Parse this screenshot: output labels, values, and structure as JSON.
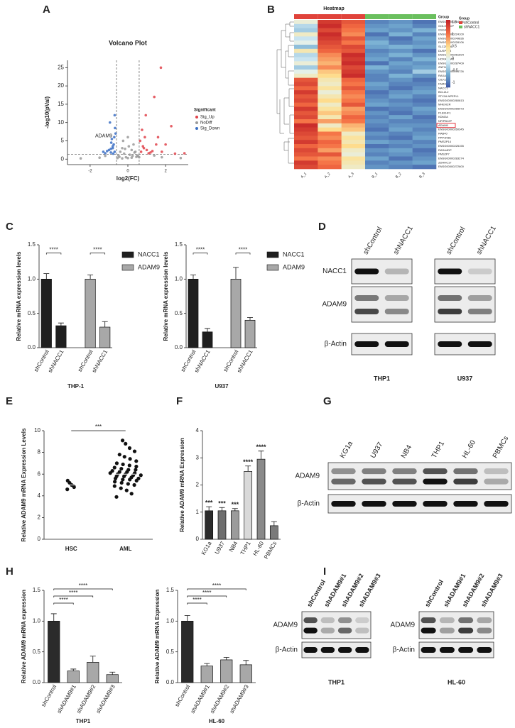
{
  "panel_labels": [
    "A",
    "B",
    "C",
    "D",
    "E",
    "F",
    "G",
    "H",
    "I"
  ],
  "chart_data": [
    {
      "type": "scatter",
      "title": "Volcano Plot",
      "x_label": "log2(FC)",
      "y_label": "-log10(pVal)",
      "xlim": [
        -3.2,
        3.2
      ],
      "ylim": [
        -1.5,
        27
      ],
      "xticks": [
        -2,
        0,
        2
      ],
      "yticks": [
        0,
        5,
        10,
        15,
        20,
        25
      ],
      "hlines": [
        1.3
      ],
      "vlines": [
        -0.6,
        0.6
      ],
      "legend_title": "Significant",
      "legend": "right",
      "series": [
        {
          "name": "Sig_Up",
          "color": "#e0434b",
          "x": [
            0.7,
            0.8,
            0.9,
            1.0,
            1.2,
            1.5,
            1.8,
            1.75,
            0.75,
            0.85,
            1.1,
            1.3,
            1.6,
            2.0,
            2.5,
            3.0,
            0.65,
            0.95,
            1.4,
            2.3
          ],
          "y": [
            2,
            3.5,
            6,
            2.5,
            1.8,
            4,
            2,
            25,
            8,
            3,
            1.6,
            2.2,
            6,
            4,
            1.5,
            1.6,
            5,
            12,
            17,
            9
          ]
        },
        {
          "name": "NoDiff",
          "color": "#9a9a9a",
          "x": [
            -0.5,
            -0.4,
            -0.3,
            -0.2,
            -0.1,
            0,
            0.1,
            0.2,
            0.3,
            0.4,
            0.5,
            -0.45,
            -0.25,
            0.05,
            0.35,
            0.55,
            -1.5,
            -1.2,
            1.4,
            1.8,
            -0.3,
            0.2,
            -0.55,
            0.45,
            0,
            -0.15,
            0.25,
            -2.5,
            2.8,
            0.6
          ],
          "y": [
            1,
            2,
            3,
            1.5,
            0.5,
            0.3,
            1.2,
            2.5,
            4,
            2,
            1,
            0.6,
            5,
            3.5,
            1.8,
            0.8,
            0.4,
            0.9,
            1,
            0.5,
            0.2,
            0.4,
            0.3,
            0.6,
            6,
            2.8,
            0.9,
            0.2,
            0.3,
            0.5
          ]
        },
        {
          "name": "Sig_Down",
          "color": "#3b6fc4",
          "x": [
            -0.7,
            -0.8,
            -0.9,
            -1.0,
            -0.75,
            -0.85,
            -1.1,
            -0.65,
            -0.95,
            -0.7,
            -0.8,
            -1.2,
            -0.9,
            -0.72,
            -1.3,
            -0.68,
            -0.78,
            -0.88
          ],
          "y": [
            2,
            3,
            1.8,
            2.5,
            4,
            5.5,
            2.2,
            7,
            10,
            12,
            3.5,
            1.6,
            2.8,
            6,
            2,
            8.5,
            1.5,
            4.5
          ]
        }
      ],
      "annotation": {
        "text": "ADAM9",
        "x": -0.75,
        "y": 5.5
      }
    },
    {
      "type": "heatmap",
      "title": "Heatmap",
      "columns": [
        "A_1",
        "A_2",
        "A_3",
        "B_1",
        "B_2",
        "B_3"
      ],
      "column_groups": [
        "shControl",
        "shControl",
        "shControl",
        "shNACC1",
        "shNACC1",
        "shNACC1"
      ],
      "group_title": "Group",
      "groups": [
        {
          "name": "shControl",
          "color": "#e0433a"
        },
        {
          "name": "shNACC1",
          "color": "#6abf5e"
        }
      ],
      "rows": [
        "ENSG00000284686",
        "GOLGA8CP",
        "GSG4",
        "ENSG00000224100",
        "ENSG00000249836",
        "ENSG00000228106",
        "SLC25A26",
        "DUSP5P8",
        "ENSG00000261694",
        "HOXA11-AS",
        "ENSG00000287409",
        "ZNF16",
        "ENSG00000254726",
        "RAXA2P",
        "CILK1",
        "FAM3C",
        "NACC1",
        "BCL2L2",
        "STX16-NPEPL1",
        "ENSG00000260813",
        "MHENCR",
        "ENSG00000255073",
        "PLEKHF1",
        "KDM2A",
        "NPIPB12P",
        "ADAM9",
        "ENSG00000260345",
        "RAB40",
        "PPP1R3E",
        "PMS2P14",
        "ENSG00000225155",
        "RASA4DP",
        "PMS2P7",
        "ENSG00000283274",
        "ZDHHC17",
        "ENSG00000272600"
      ],
      "values": [
        [
          0.1,
          1.4,
          1.2,
          -0.9,
          -0.8,
          -1.0
        ],
        [
          -0.3,
          1.5,
          1.1,
          -0.8,
          -0.7,
          -0.9
        ],
        [
          -0.4,
          1.3,
          1.0,
          -0.7,
          -0.8,
          -0.6
        ],
        [
          0.2,
          1.5,
          0.9,
          -1.0,
          -0.6,
          -0.9
        ],
        [
          -0.2,
          1.4,
          1.2,
          -0.8,
          -1.0,
          -0.7
        ],
        [
          0.0,
          1.3,
          1.0,
          -0.6,
          -0.9,
          -0.8
        ],
        [
          -0.5,
          1.2,
          1.3,
          -0.7,
          -0.6,
          -0.7
        ],
        [
          0.3,
          1.1,
          1.2,
          -0.9,
          -0.8,
          -1.0
        ],
        [
          -0.3,
          0.9,
          1.5,
          -0.8,
          -0.6,
          -0.8
        ],
        [
          -0.2,
          0.8,
          1.4,
          -0.7,
          -0.9,
          -0.6
        ],
        [
          0.1,
          0.7,
          1.5,
          -1.0,
          -0.7,
          -0.8
        ],
        [
          -0.4,
          0.9,
          1.3,
          -0.6,
          -0.8,
          -0.7
        ],
        [
          0.0,
          0.6,
          1.4,
          -0.8,
          -0.9,
          -0.4
        ],
        [
          0.2,
          0.5,
          1.5,
          -0.9,
          -0.6,
          -0.8
        ],
        [
          1.2,
          0.3,
          1.1,
          -0.9,
          -0.8,
          -1.0
        ],
        [
          1.3,
          0.2,
          1.0,
          -0.7,
          -0.9,
          -0.9
        ],
        [
          1.1,
          0.4,
          1.2,
          -0.8,
          -1.0,
          -0.8
        ],
        [
          1.4,
          0.1,
          1.0,
          -1.0,
          -0.8,
          -0.7
        ],
        [
          1.2,
          0.3,
          0.9,
          -0.9,
          -0.7,
          -0.9
        ],
        [
          1.3,
          0.5,
          1.0,
          -0.8,
          -0.9,
          -1.0
        ],
        [
          1.1,
          0.2,
          1.2,
          -0.7,
          -0.8,
          -0.9
        ],
        [
          1.4,
          0.4,
          0.8,
          -1.0,
          -0.9,
          -0.7
        ],
        [
          1.2,
          0.6,
          0.9,
          -0.8,
          -1.0,
          -0.8
        ],
        [
          1.3,
          0.3,
          1.1,
          -0.9,
          -0.7,
          -1.0
        ],
        [
          1.0,
          0.8,
          1.0,
          -0.8,
          -0.9,
          -0.9
        ],
        [
          1.5,
          0.2,
          0.7,
          -0.9,
          -0.8,
          -0.8
        ],
        [
          1.4,
          0.5,
          0.6,
          -1.0,
          -0.7,
          -0.9
        ],
        [
          1.3,
          1.0,
          0.2,
          -0.8,
          -0.9,
          -0.8
        ],
        [
          1.2,
          0.9,
          0.4,
          -0.9,
          -1.0,
          -0.7
        ],
        [
          1.4,
          1.1,
          0.3,
          -0.7,
          -0.8,
          -0.9
        ],
        [
          1.1,
          1.0,
          0.5,
          -1.0,
          -0.9,
          -0.8
        ],
        [
          1.3,
          0.8,
          0.2,
          -0.8,
          -0.7,
          -1.0
        ],
        [
          1.2,
          1.2,
          0.1,
          -0.9,
          -0.8,
          -0.9
        ],
        [
          1.0,
          0.9,
          0.4,
          -0.7,
          -1.0,
          -0.8
        ],
        [
          1.4,
          1.0,
          0.3,
          -0.9,
          -0.8,
          -0.7
        ],
        [
          1.3,
          1.1,
          0.2,
          -0.8,
          -0.9,
          -1.0
        ]
      ],
      "clim": [
        -1.2,
        1.6
      ],
      "colors": [
        "#3a54a4",
        "#74add1",
        "#e0f3f8",
        "#fee090",
        "#f46d43",
        "#c11f26"
      ],
      "colorbar_ticks": [
        -1,
        -0.5,
        0,
        0.5,
        1,
        1.5
      ],
      "highlight": "ADAM9"
    },
    {
      "type": "bar",
      "layout": "series-blocks",
      "categories": [
        "shControl",
        "shNACC1"
      ],
      "series": [
        {
          "name": "NACC1",
          "color": "#1f1f1f",
          "values": [
            1.0,
            0.32
          ],
          "errors": [
            0.08,
            0.04
          ]
        },
        {
          "name": "ADAM9",
          "color": "#a8a8a8",
          "values": [
            1.0,
            0.3
          ],
          "errors": [
            0.06,
            0.08
          ]
        }
      ],
      "significance": [
        "****",
        "****"
      ],
      "significance_style": "bracket",
      "x_label": "THP-1",
      "y_label": "Relative mRNA expression levels",
      "legend": "right",
      "ylim": [
        0,
        1.5
      ],
      "yticks": [
        {
          "value": 0,
          "label": "0.0"
        },
        {
          "value": 0.5,
          "label": "0.5"
        },
        {
          "value": 1,
          "label": "1.0"
        },
        {
          "value": 1.5,
          "label": "1.5"
        }
      ]
    },
    {
      "type": "bar",
      "layout": "series-blocks",
      "categories": [
        "shControl",
        "shNACC1"
      ],
      "series": [
        {
          "name": "NACC1",
          "color": "#1f1f1f",
          "values": [
            1.0,
            0.23
          ],
          "errors": [
            0.06,
            0.05
          ]
        },
        {
          "name": "ADAM9",
          "color": "#a8a8a8",
          "values": [
            1.0,
            0.4
          ],
          "errors": [
            0.17,
            0.04
          ]
        }
      ],
      "significance": [
        "****",
        "****"
      ],
      "significance_style": "bracket",
      "x_label": "U937",
      "y_label": "Relative mRNA expression levels",
      "legend": "right",
      "ylim": [
        0,
        1.5
      ],
      "yticks": [
        {
          "value": 0,
          "label": "0.0"
        },
        {
          "value": 0.5,
          "label": "0.5"
        },
        {
          "value": 1,
          "label": "1.0"
        },
        {
          "value": 1.5,
          "label": "1.5"
        }
      ]
    },
    {
      "type": "dotplot",
      "categories": [
        "HSC",
        "AML"
      ],
      "values": [
        [
          4.6,
          4.9,
          5.0,
          5.2,
          5.4,
          4.8
        ],
        [
          3.9,
          4.2,
          4.5,
          4.7,
          4.9,
          5.0,
          5.1,
          5.2,
          5.3,
          5.4,
          5.5,
          5.5,
          5.6,
          5.6,
          5.7,
          5.8,
          5.8,
          5.9,
          5.9,
          6.0,
          6.0,
          6.1,
          6.1,
          6.2,
          6.2,
          6.3,
          6.4,
          6.4,
          6.5,
          6.6,
          6.7,
          6.8,
          6.9,
          7.0,
          7.2,
          7.4,
          7.6,
          7.8,
          8.1,
          8.4,
          8.8,
          9.1
        ]
      ],
      "means": [
        5.0,
        6.0
      ],
      "significance": "***",
      "color": "#111111",
      "y_label": "Relative ADAM9 mRNA Expression Levels",
      "ylim": [
        0,
        10
      ],
      "yticks": [
        0,
        2,
        4,
        6,
        8,
        10
      ]
    },
    {
      "type": "bar",
      "categories": [
        "KG1a",
        "U937",
        "NB4",
        "THP1",
        "HL-60",
        "PBMCs"
      ],
      "values": [
        1.05,
        1.05,
        1.05,
        2.5,
        2.95,
        0.5
      ],
      "errors": [
        0.15,
        0.12,
        0.08,
        0.2,
        0.3,
        0.15
      ],
      "colors": [
        "#2b2b2b",
        "#6e6e6e",
        "#9b9b9b",
        "#d9d9d9",
        "#8a8a8a",
        "#7a7a7a"
      ],
      "significance": [
        "***",
        "***",
        "***",
        "****",
        "****",
        null
      ],
      "significance_style": "above",
      "y_label": "Relative ADAM9 mRNA Expression",
      "ylim": [
        0,
        4
      ],
      "yticks": [
        0,
        1,
        2,
        3,
        4
      ]
    },
    {
      "type": "bar",
      "categories": [
        "shControl",
        "shADAM9#1",
        "shADAM9#2",
        "shADAM9#3"
      ],
      "values": [
        1.0,
        0.19,
        0.33,
        0.13
      ],
      "errors": [
        0.12,
        0.03,
        0.1,
        0.04
      ],
      "colors": [
        "#2b2b2b",
        "#a8a8a8",
        "#a8a8a8",
        "#a8a8a8"
      ],
      "significance": [
        null,
        "****",
        "****",
        "****"
      ],
      "significance_style": "bracket",
      "x_label": "THP1",
      "y_label": "Relative ADAM9 mRNA expression",
      "ylim": [
        0,
        1.5
      ],
      "yticks": [
        {
          "value": 0,
          "label": "0.0"
        },
        {
          "value": 0.5,
          "label": "0.5"
        },
        {
          "value": 1,
          "label": "1.0"
        },
        {
          "value": 1.5,
          "label": "1.5"
        }
      ]
    },
    {
      "type": "bar",
      "categories": [
        "shControl",
        "shADAM9#1",
        "shADAM9#2",
        "shADAM9#3"
      ],
      "values": [
        1.0,
        0.27,
        0.37,
        0.29
      ],
      "errors": [
        0.09,
        0.04,
        0.04,
        0.07
      ],
      "colors": [
        "#2b2b2b",
        "#a8a8a8",
        "#a8a8a8",
        "#a8a8a8"
      ],
      "significance": [
        null,
        "****",
        "****",
        "****"
      ],
      "significance_style": "bracket",
      "x_label": "HL-60",
      "y_label": "Relative ADAM9 mRNA Expression",
      "ylim": [
        0,
        1.5
      ],
      "yticks": [
        {
          "value": 0,
          "label": "0.0"
        },
        {
          "value": 0.5,
          "label": "0.5"
        },
        {
          "value": 1,
          "label": "1.0"
        },
        {
          "value": 1.5,
          "label": "1.5"
        }
      ]
    }
  ],
  "blots": [
    {
      "rows": [
        "NACC1",
        "ADAM9",
        "β-Actin"
      ],
      "blocks": [
        {
          "label": "THP1",
          "lanes": [
            "shControl",
            "shNACC1"
          ]
        },
        {
          "label": "U937",
          "lanes": [
            "shControl",
            "shNACC1"
          ]
        }
      ]
    },
    {
      "rows": [
        "ADAM9",
        "β-Actin"
      ],
      "blocks": [
        {
          "lanes": [
            "KG1a",
            "U937",
            "NB4",
            "THP1",
            "HL-60",
            "PBMCs"
          ]
        }
      ]
    },
    {
      "rows": [
        "ADAM9",
        "β-Actin"
      ],
      "blocks": [
        {
          "label": "THP1",
          "lanes": [
            "shControl",
            "shADAM9#1",
            "shADAM9#2",
            "shADAM9#3"
          ]
        },
        {
          "label": "HL-60",
          "lanes": [
            "shControl",
            "shADAM9#1",
            "shADAM9#2",
            "shADAM9#3"
          ]
        }
      ]
    }
  ]
}
